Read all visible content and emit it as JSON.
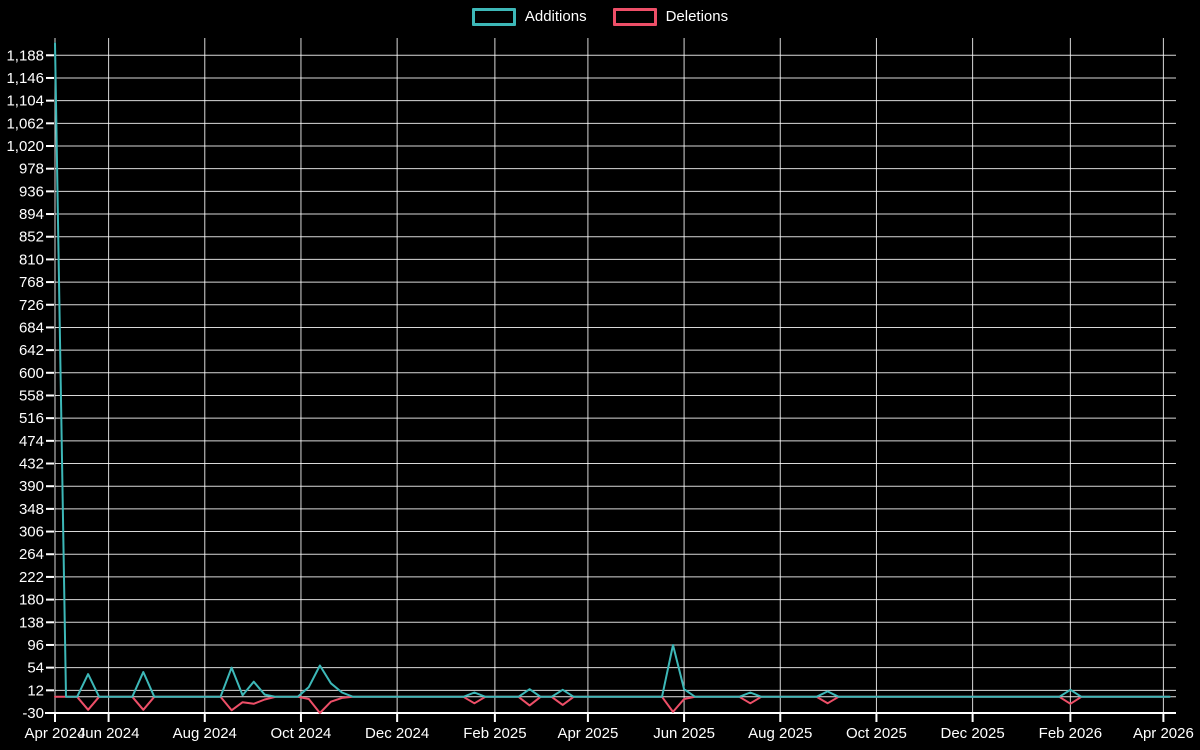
{
  "page": {
    "background": "#000000"
  },
  "legend": {
    "items": [
      {
        "label": "Additions",
        "color": "#3db8b8"
      },
      {
        "label": "Deletions",
        "color": "#ee4f68"
      }
    ]
  },
  "chart_data": {
    "type": "line",
    "description": "Weekly additions and deletions frequency chart; weeks not listed in events are 0",
    "background": "#000000",
    "grid": true,
    "grid_color": "#ffffff",
    "axis_color": "#ffffff",
    "label_color": "#ffffff",
    "legend_position": "top-center",
    "sampling": "weekly",
    "x_axis": {
      "unit": "days since first data week (late Apr 2024)",
      "span_days": 711,
      "ticks": [
        {
          "day": 0,
          "label": "Apr 2024"
        },
        {
          "day": 34,
          "label": "Jun 2024"
        },
        {
          "day": 95,
          "label": "Aug 2024"
        },
        {
          "day": 156,
          "label": "Oct 2024"
        },
        {
          "day": 217,
          "label": "Dec 2024"
        },
        {
          "day": 279,
          "label": "Feb 2025"
        },
        {
          "day": 338,
          "label": "Apr 2025"
        },
        {
          "day": 399,
          "label": "Jun 2025"
        },
        {
          "day": 460,
          "label": "Aug 2025"
        },
        {
          "day": 521,
          "label": "Oct 2025"
        },
        {
          "day": 582,
          "label": "Dec 2025"
        },
        {
          "day": 644,
          "label": "Feb 2026"
        },
        {
          "day": 703,
          "label": "Apr 2026"
        }
      ]
    },
    "y_axis": {
      "min": -30,
      "max": 1220,
      "zero_line": 0,
      "ticks": [
        {
          "value": -30,
          "label": "-30"
        },
        {
          "value": 12,
          "label": "12"
        },
        {
          "value": 54,
          "label": "54"
        },
        {
          "value": 96,
          "label": "96"
        },
        {
          "value": 138,
          "label": "138"
        },
        {
          "value": 180,
          "label": "180"
        },
        {
          "value": 222,
          "label": "222"
        },
        {
          "value": 264,
          "label": "264"
        },
        {
          "value": 306,
          "label": "306"
        },
        {
          "value": 348,
          "label": "348"
        },
        {
          "value": 390,
          "label": "390"
        },
        {
          "value": 432,
          "label": "432"
        },
        {
          "value": 474,
          "label": "474"
        },
        {
          "value": 516,
          "label": "516"
        },
        {
          "value": 558,
          "label": "558"
        },
        {
          "value": 600,
          "label": "600"
        },
        {
          "value": 642,
          "label": "642"
        },
        {
          "value": 684,
          "label": "684"
        },
        {
          "value": 726,
          "label": "726"
        },
        {
          "value": 768,
          "label": "768"
        },
        {
          "value": 810,
          "label": "810"
        },
        {
          "value": 852,
          "label": "852"
        },
        {
          "value": 894,
          "label": "894"
        },
        {
          "value": 936,
          "label": "936"
        },
        {
          "value": 978,
          "label": "978"
        },
        {
          "value": 1020,
          "label": "1,020"
        },
        {
          "value": 1062,
          "label": "1,062"
        },
        {
          "value": 1104,
          "label": "1,104"
        },
        {
          "value": 1146,
          "label": "1,146"
        },
        {
          "value": 1188,
          "label": "1,188"
        }
      ]
    },
    "series": [
      {
        "name": "Additions",
        "color": "#3db8b8",
        "baseline_value": 0,
        "events": {
          "0": 1210,
          "21": 42,
          "56": 46,
          "112": 54,
          "119": 3,
          "126": 28,
          "133": 4,
          "161": 18,
          "168": 58,
          "175": 25,
          "182": 8,
          "266": 8,
          "301": 14,
          "322": 13,
          "392": 96,
          "399": 14,
          "441": 8,
          "490": 10,
          "644": 13
        }
      },
      {
        "name": "Deletions",
        "color": "#ee4f68",
        "baseline_value": 0,
        "events": {
          "21": -24,
          "56": -24,
          "112": -25,
          "119": -10,
          "126": -13,
          "133": -5,
          "161": -4,
          "168": -30,
          "175": -9,
          "182": -2,
          "266": -12,
          "301": -16,
          "322": -15,
          "392": -28,
          "399": -4,
          "441": -12,
          "490": -12,
          "644": -13
        }
      }
    ]
  }
}
